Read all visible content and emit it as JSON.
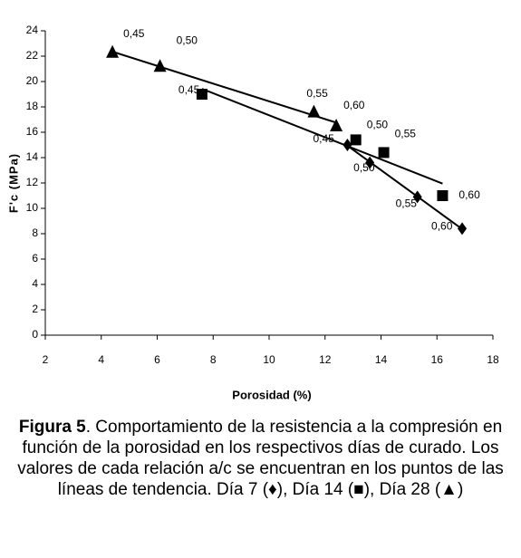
{
  "chart_data": {
    "type": "scatter",
    "x_label": "Porosidad (%)",
    "y_label": "F'c (MPa)",
    "xlim": [
      2,
      18
    ],
    "xticks": [
      2,
      4,
      6,
      8,
      10,
      12,
      14,
      16,
      18
    ],
    "ylim": [
      0,
      24
    ],
    "yticks": [
      0,
      2,
      4,
      6,
      8,
      10,
      12,
      14,
      16,
      18,
      20,
      22,
      24
    ],
    "trendlines": true,
    "series": [
      {
        "marker": "triangle",
        "color": "#000000",
        "x": [
          4.4,
          6.1,
          11.6,
          12.4
        ],
        "values": [
          22.3,
          21.2,
          17.6,
          16.5
        ],
        "labels": [
          "0,45",
          "0,50",
          "0,55",
          "0,60"
        ]
      },
      {
        "marker": "square",
        "color": "#000000",
        "x": [
          7.6,
          13.1,
          14.1,
          16.2
        ],
        "values": [
          19.0,
          15.4,
          14.4,
          11.0
        ],
        "labels": [
          "0,45",
          "0,50",
          "0,55",
          "0,60"
        ]
      },
      {
        "marker": "diamond",
        "color": "#000000",
        "x": [
          12.8,
          13.6,
          15.3,
          16.9
        ],
        "values": [
          15.0,
          13.6,
          10.9,
          8.4
        ],
        "labels": [
          "0,45",
          "0,50",
          "0,55",
          "0,60"
        ]
      }
    ]
  },
  "caption": {
    "label": "Figura 5",
    "text": ".  Comportamiento de la resistencia a la compresión en función de la porosidad en los respectivos días de curado.  Los valores de cada relación a/c se encuentran en los puntos de las líneas de tendencia.  Día 7 (♦), Día 14 (■), Día 28 (▲)"
  }
}
